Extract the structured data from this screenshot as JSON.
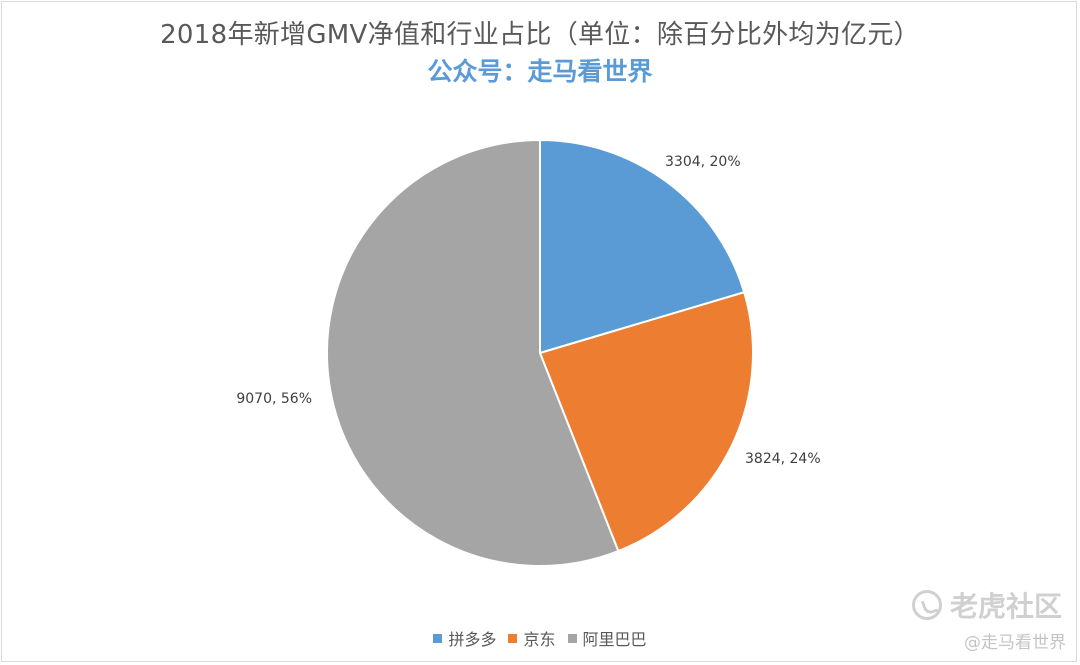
{
  "chart_data": {
    "type": "pie",
    "title": "2018年新增GMV净值和行业占比（单位：除百分比外均为亿元）",
    "subtitle": "公众号：走马看世界",
    "slices": [
      {
        "name": "拼多多",
        "value": 3304,
        "percent": "20%",
        "label": "3304, 20%",
        "color": "#5b9bd5"
      },
      {
        "name": "京东",
        "value": 3824,
        "percent": "24%",
        "label": "3824, 24%",
        "color": "#ed7d31"
      },
      {
        "name": "阿里巴巴",
        "value": 9070,
        "percent": "56%",
        "label": "9070, 56%",
        "color": "#a5a5a5"
      }
    ],
    "legend_position": "bottom"
  },
  "watermark": {
    "brand": "老虎社区",
    "handle": "@走马看世界"
  }
}
